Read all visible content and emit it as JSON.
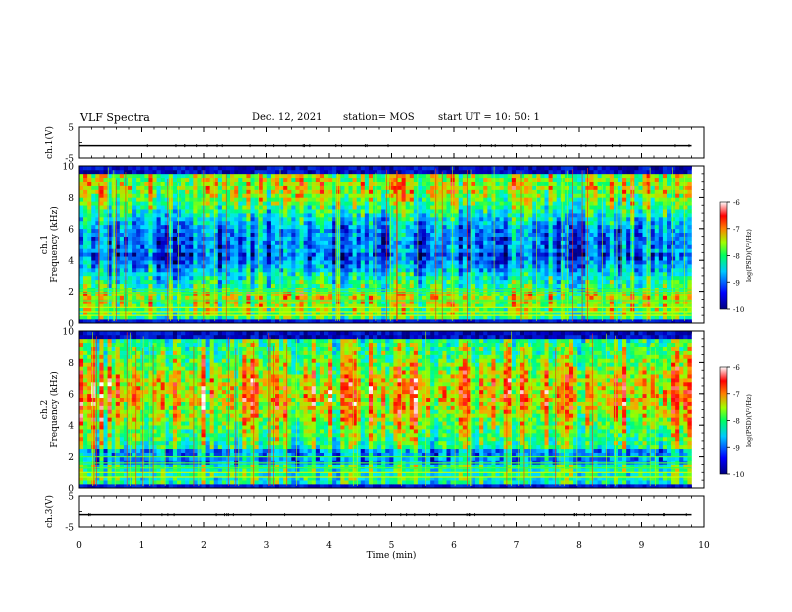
{
  "header": {
    "title": "VLF Spectra",
    "date": "Dec. 12, 2021",
    "station": "station= MOS",
    "start": "start UT = 10: 50: 1"
  },
  "chart_data": [
    {
      "type": "line",
      "panel": "ch1-voltage",
      "ylabel": "ch.1(V)",
      "ylim": [
        -5,
        5
      ],
      "yticks": [
        "5",
        "-5"
      ],
      "x": [
        0,
        1,
        2,
        3,
        4,
        5,
        6,
        7,
        8,
        9,
        9.8
      ],
      "series": [
        {
          "values": [
            -1,
            -1,
            -1,
            -1,
            -1,
            -1,
            -1,
            -1,
            -1,
            -1,
            -1
          ]
        }
      ]
    },
    {
      "type": "heatmap",
      "panel": "ch1-spectrogram",
      "ylabel": "ch.1",
      "ylabel2": "Frequency (kHz)",
      "ylim": [
        0,
        10
      ],
      "yticks": [
        "0",
        "2",
        "4",
        "6",
        "8",
        "10"
      ],
      "xlim": [
        0,
        10
      ],
      "colorbar": {
        "label": "log(PSD)(V²/Hz)",
        "min": -10,
        "max": -6,
        "ticks": [
          "-6",
          "-7",
          "-8",
          "-9",
          "-10"
        ]
      }
    },
    {
      "type": "heatmap",
      "panel": "ch2-spectrogram",
      "ylabel": "ch.2",
      "ylabel2": "Frequency (kHz)",
      "ylim": [
        0,
        10
      ],
      "yticks": [
        "0",
        "2",
        "4",
        "6",
        "8",
        "10"
      ],
      "xlim": [
        0,
        10
      ],
      "colorbar": {
        "label": "log(PSD)(V²/Hz)",
        "min": -10,
        "max": -6,
        "ticks": [
          "-6",
          "-7",
          "-8",
          "-9",
          "-10"
        ]
      }
    },
    {
      "type": "line",
      "panel": "ch3-voltage",
      "ylabel": "ch.3(V)",
      "ylim": [
        -5,
        5
      ],
      "yticks": [
        "5",
        "-5"
      ],
      "x": [
        0,
        1,
        2,
        3,
        4,
        5,
        6,
        7,
        8,
        9,
        9.8
      ],
      "series": [
        {
          "values": [
            -1,
            -1,
            -1,
            -1,
            -1,
            -1,
            -1,
            -1,
            -1,
            -1,
            -1
          ]
        }
      ],
      "xlabel": "Time (min)",
      "xticks": [
        "0",
        "1",
        "2",
        "3",
        "4",
        "5",
        "6",
        "7",
        "8",
        "9",
        "10"
      ]
    }
  ]
}
